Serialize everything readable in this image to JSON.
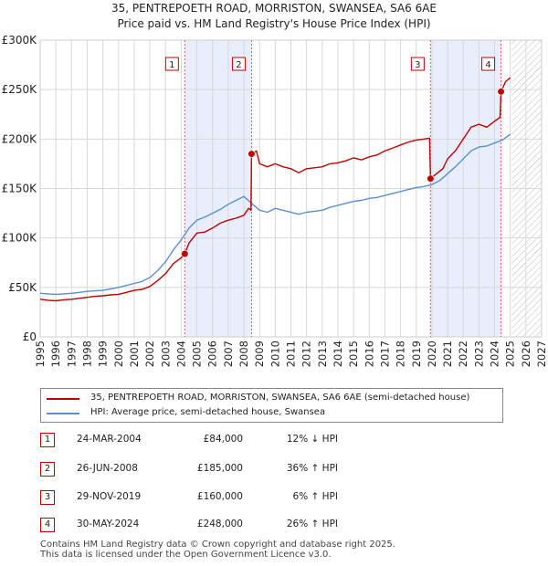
{
  "title_line1": "35, PENTREPOETH ROAD, MORRISTON, SWANSEA, SA6 6AE",
  "title_line2": "Price paid vs. HM Land Registry's House Price Index (HPI)",
  "colors": {
    "property": "#c00000",
    "hpi": "#5b8fcf",
    "shade": "#e8eefb",
    "marker_line": "#e06060"
  },
  "chart_data": {
    "type": "line",
    "x_range": [
      1995,
      2027
    ],
    "ylim": [
      0,
      300000
    ],
    "y_ticks": [
      {
        "value": 0,
        "label": "£0"
      },
      {
        "value": 50000,
        "label": "£50K"
      },
      {
        "value": 100000,
        "label": "£100K"
      },
      {
        "value": 150000,
        "label": "£150K"
      },
      {
        "value": 200000,
        "label": "£200K"
      },
      {
        "value": 250000,
        "label": "£250K"
      },
      {
        "value": 300000,
        "label": "£300K"
      }
    ],
    "x_ticks": [
      "1995",
      "1996",
      "1997",
      "1998",
      "1999",
      "2000",
      "2001",
      "2002",
      "2003",
      "2004",
      "2005",
      "2006",
      "2007",
      "2008",
      "2009",
      "2010",
      "2011",
      "2012",
      "2013",
      "2014",
      "2015",
      "2016",
      "2017",
      "2018",
      "2019",
      "2020",
      "2021",
      "2022",
      "2023",
      "2024",
      "2025",
      "2026",
      "2027"
    ],
    "forecast_start": 2025.1,
    "shaded_periods": [
      [
        2004.23,
        2008.49
      ],
      [
        2019.91,
        2024.41
      ]
    ],
    "series": [
      {
        "name": "35, PENTREPOETH ROAD, MORRISTON, SWANSEA, SA6 6AE (semi-detached house)",
        "x": [
          1995.0,
          1995.5,
          1996.0,
          1996.5,
          1997.0,
          1997.5,
          1998.0,
          1998.5,
          1999.0,
          1999.5,
          2000.0,
          2000.5,
          2001.0,
          2001.5,
          2002.0,
          2002.5,
          2003.0,
          2003.5,
          2004.0,
          2004.23,
          2004.5,
          2005.0,
          2005.5,
          2006.0,
          2006.5,
          2007.0,
          2007.5,
          2008.0,
          2008.3,
          2008.45,
          2008.49,
          2008.8,
          2009.0,
          2009.5,
          2010.0,
          2010.5,
          2011.0,
          2011.5,
          2012.0,
          2012.5,
          2013.0,
          2013.5,
          2014.0,
          2014.5,
          2015.0,
          2015.5,
          2016.0,
          2016.5,
          2017.0,
          2017.5,
          2018.0,
          2018.5,
          2019.0,
          2019.5,
          2019.85,
          2019.91,
          2020.3,
          2020.7,
          2021.0,
          2021.5,
          2022.0,
          2022.5,
          2023.0,
          2023.5,
          2024.0,
          2024.35,
          2024.41,
          2024.7,
          2025.0
        ],
        "values": [
          38000,
          37000,
          36500,
          37500,
          38000,
          39000,
          40000,
          41000,
          41500,
          42500,
          43000,
          45000,
          47000,
          48000,
          51000,
          57000,
          64000,
          74000,
          80000,
          84000,
          95000,
          105000,
          106000,
          110000,
          115000,
          118000,
          120000,
          123000,
          130000,
          128000,
          185000,
          188000,
          175000,
          172000,
          175000,
          172000,
          170000,
          166000,
          170000,
          171000,
          172000,
          175000,
          176000,
          178000,
          181000,
          179000,
          182000,
          184000,
          188000,
          191000,
          194000,
          197000,
          199000,
          200000,
          201000,
          160000,
          165000,
          170000,
          180000,
          188000,
          200000,
          212000,
          215000,
          212000,
          218000,
          222000,
          248000,
          258000,
          262000
        ]
      },
      {
        "name": "HPI: Average price, semi-detached house, Swansea",
        "x": [
          1995.0,
          1995.5,
          1996.0,
          1996.5,
          1997.0,
          1997.5,
          1998.0,
          1998.5,
          1999.0,
          1999.5,
          2000.0,
          2000.5,
          2001.0,
          2001.5,
          2002.0,
          2002.5,
          2003.0,
          2003.5,
          2004.0,
          2004.5,
          2005.0,
          2005.5,
          2006.0,
          2006.5,
          2007.0,
          2007.5,
          2008.0,
          2008.5,
          2009.0,
          2009.5,
          2010.0,
          2010.5,
          2011.0,
          2011.5,
          2012.0,
          2012.5,
          2013.0,
          2013.5,
          2014.0,
          2014.5,
          2015.0,
          2015.5,
          2016.0,
          2016.5,
          2017.0,
          2017.5,
          2018.0,
          2018.5,
          2019.0,
          2019.5,
          2020.0,
          2020.5,
          2021.0,
          2021.5,
          2022.0,
          2022.5,
          2023.0,
          2023.5,
          2024.0,
          2024.5,
          2025.0
        ],
        "values": [
          44000,
          43500,
          43000,
          43500,
          44000,
          45000,
          46000,
          46500,
          47000,
          48500,
          50000,
          52000,
          54000,
          56000,
          60000,
          67000,
          76000,
          88000,
          98000,
          110000,
          118000,
          121000,
          125000,
          129000,
          134000,
          138000,
          142000,
          135000,
          128000,
          126000,
          130000,
          128000,
          126000,
          124000,
          126000,
          127000,
          128000,
          131000,
          133000,
          135000,
          137000,
          138000,
          140000,
          141000,
          143000,
          145000,
          147000,
          149000,
          151000,
          152000,
          154000,
          158000,
          165000,
          172000,
          180000,
          188000,
          192000,
          193000,
          196000,
          199000,
          205000
        ]
      }
    ],
    "sales": [
      {
        "id": "1",
        "x": 2004.23,
        "value": 84000
      },
      {
        "id": "2",
        "x": 2008.49,
        "value": 185000
      },
      {
        "id": "3",
        "x": 2019.91,
        "value": 160000
      },
      {
        "id": "4",
        "x": 2024.41,
        "value": 248000
      }
    ]
  },
  "legend": {
    "property_label": "35, PENTREPOETH ROAD, MORRISTON, SWANSEA, SA6 6AE (semi-detached house)",
    "hpi_label": "HPI: Average price, semi-detached house, Swansea"
  },
  "transactions": [
    {
      "id": "1",
      "date": "24-MAR-2004",
      "price": "£84,000",
      "hpi": "12% ↓ HPI"
    },
    {
      "id": "2",
      "date": "26-JUN-2008",
      "price": "£185,000",
      "hpi": "36% ↑ HPI"
    },
    {
      "id": "3",
      "date": "29-NOV-2019",
      "price": "£160,000",
      "hpi": "6% ↑ HPI"
    },
    {
      "id": "4",
      "date": "30-MAY-2024",
      "price": "£248,000",
      "hpi": "26% ↑ HPI"
    }
  ],
  "footer": {
    "line1": "Contains HM Land Registry data © Crown copyright and database right 2025.",
    "line2": "This data is licensed under the Open Government Licence v3.0."
  }
}
